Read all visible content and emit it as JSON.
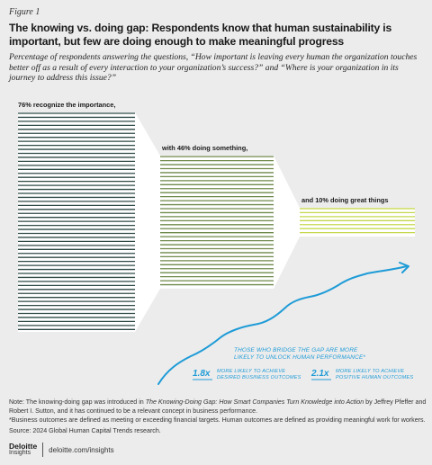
{
  "figure_label": "Figure 1",
  "title": "The knowing vs. doing gap: Respondents know that human sustainability is important, but few are doing enough to make meaningful progress",
  "subtitle": "Percentage of respondents answering the questions, “How important is leaving every human the organization touches better off as a result of every interaction to your organization’s success?” and “Where is your organization in its journey to address this issue?”",
  "chart_data": {
    "type": "bar",
    "categories": [
      "76% recognize the importance,",
      "with 46% doing something,",
      "and 10% doing great things"
    ],
    "values": [
      76,
      46,
      10
    ],
    "colors": [
      "#2f4a46",
      "#6f8a4a",
      "#c6d84d"
    ],
    "funnel_color": "#ffffff",
    "annotation": {
      "headline": "THOSE WHO BRIDGE THE GAP ARE MORE LIKELY TO UNLOCK HUMAN PERFORMANCE*",
      "stats": [
        {
          "value": "1.8x",
          "text": "MORE LIKELY TO ACHIEVE DESIRED BUSINESS OUTCOMES"
        },
        {
          "value": "2.1x",
          "text": "MORE LIKELY TO ACHIEVE POSITIVE HUMAN OUTCOMES"
        }
      ],
      "color": "#1e9bd7"
    }
  },
  "notes": {
    "note_prefix": "Note: The knowing-doing gap was introduced in ",
    "note_book": "The Knowing-Doing Gap: How Smart Companies Turn Knowledge into Action",
    "note_suffix": " by Jeffrey Pfeffer and Robert I. Sutton, and it has continued to be a relevant concept in business performance.",
    "definition": "*Business outcomes are defined as meeting or exceeding financial targets. Human outcomes are defined as providing meaningful work for workers.",
    "source": "Source: 2024 Global Human Capital Trends research."
  },
  "footer": {
    "logo_top": "Deloitte",
    "logo_bottom": "Insights",
    "url": "deloitte.com/insights"
  }
}
